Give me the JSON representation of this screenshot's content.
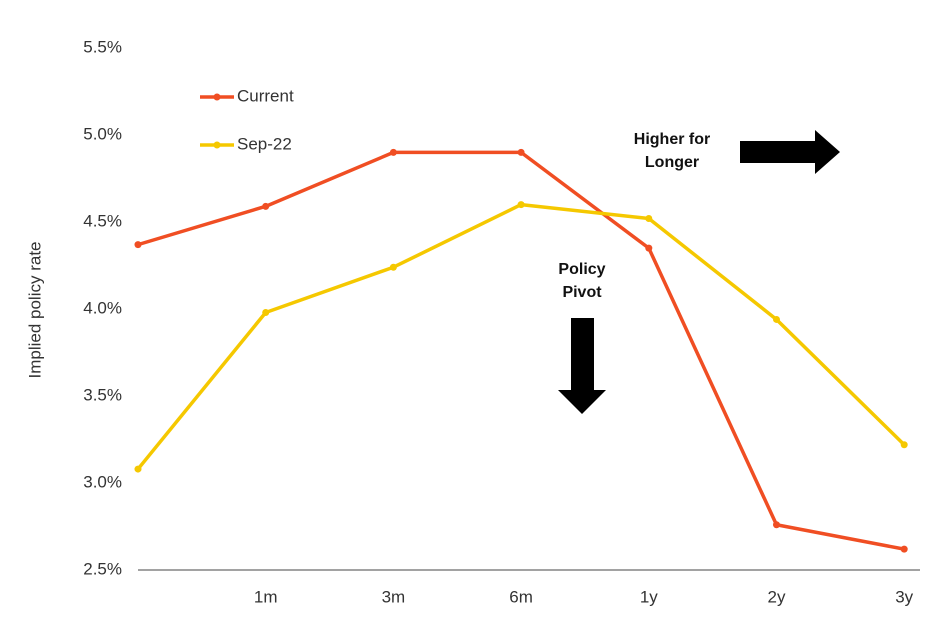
{
  "chart_data": {
    "type": "line",
    "y_label": "Implied policy rate",
    "categories": [
      null,
      "1m",
      "3m",
      "6m",
      "1y",
      "2y",
      "3y"
    ],
    "series": [
      {
        "name": "Current",
        "color": "#f04e23",
        "values": [
          4.37,
          4.59,
          4.9,
          4.9,
          4.35,
          2.76,
          2.62
        ]
      },
      {
        "name": "Sep-22",
        "color": "#f5c800",
        "values": [
          3.08,
          3.98,
          4.24,
          4.6,
          4.52,
          3.94,
          3.22
        ]
      }
    ],
    "ylim": [
      2.5,
      5.5
    ],
    "yticks": [
      {
        "value": 2.5,
        "label": "2.5%"
      },
      {
        "value": 3.0,
        "label": "3.0%"
      },
      {
        "value": 3.5,
        "label": "3.5%"
      },
      {
        "value": 4.0,
        "label": "4.0%"
      },
      {
        "value": 4.5,
        "label": "4.5%"
      },
      {
        "value": 5.0,
        "label": "5.0%"
      },
      {
        "value": 5.5,
        "label": "5.5%"
      }
    ],
    "grid": false,
    "annotations": [
      {
        "lines": [
          "Higher for",
          "Longer"
        ]
      },
      {
        "lines": [
          "Policy",
          "Pivot"
        ]
      }
    ]
  }
}
